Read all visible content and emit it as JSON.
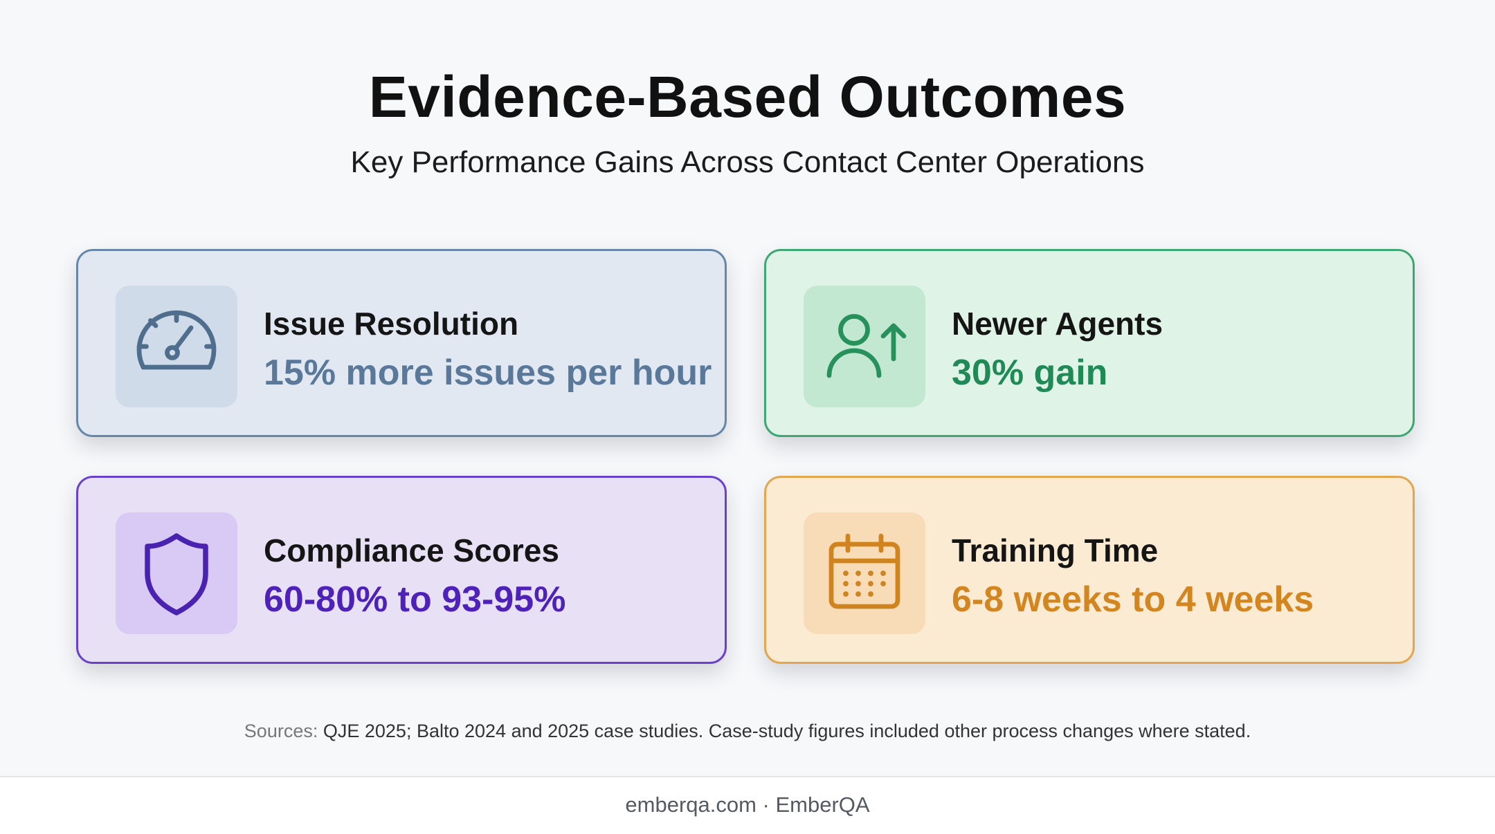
{
  "header": {
    "title": "Evidence-Based Outcomes",
    "subtitle": "Key Performance Gains Across Contact Center Operations"
  },
  "cards": [
    {
      "label": "Issue Resolution",
      "value": "15% more issues per hour",
      "icon": "speedometer-icon",
      "accent": "#5a7899"
    },
    {
      "label": "Newer Agents",
      "value": "30% gain",
      "icon": "user-arrow-up-icon",
      "accent": "#1f8a55"
    },
    {
      "label": "Compliance Scores",
      "value": "60-80% to 93-95%",
      "icon": "shield-icon",
      "accent": "#4e22b8"
    },
    {
      "label": "Training Time",
      "value": "6-8 weeks to 4 weeks",
      "icon": "calendar-icon",
      "accent": "#d3861f"
    }
  ],
  "sources": {
    "prefix": "Sources:",
    "text": "QJE 2025; Balto 2024 and 2025 case studies. Case-study figures included other process changes where stated."
  },
  "footer": {
    "text": "emberqa.com · EmberQA"
  }
}
